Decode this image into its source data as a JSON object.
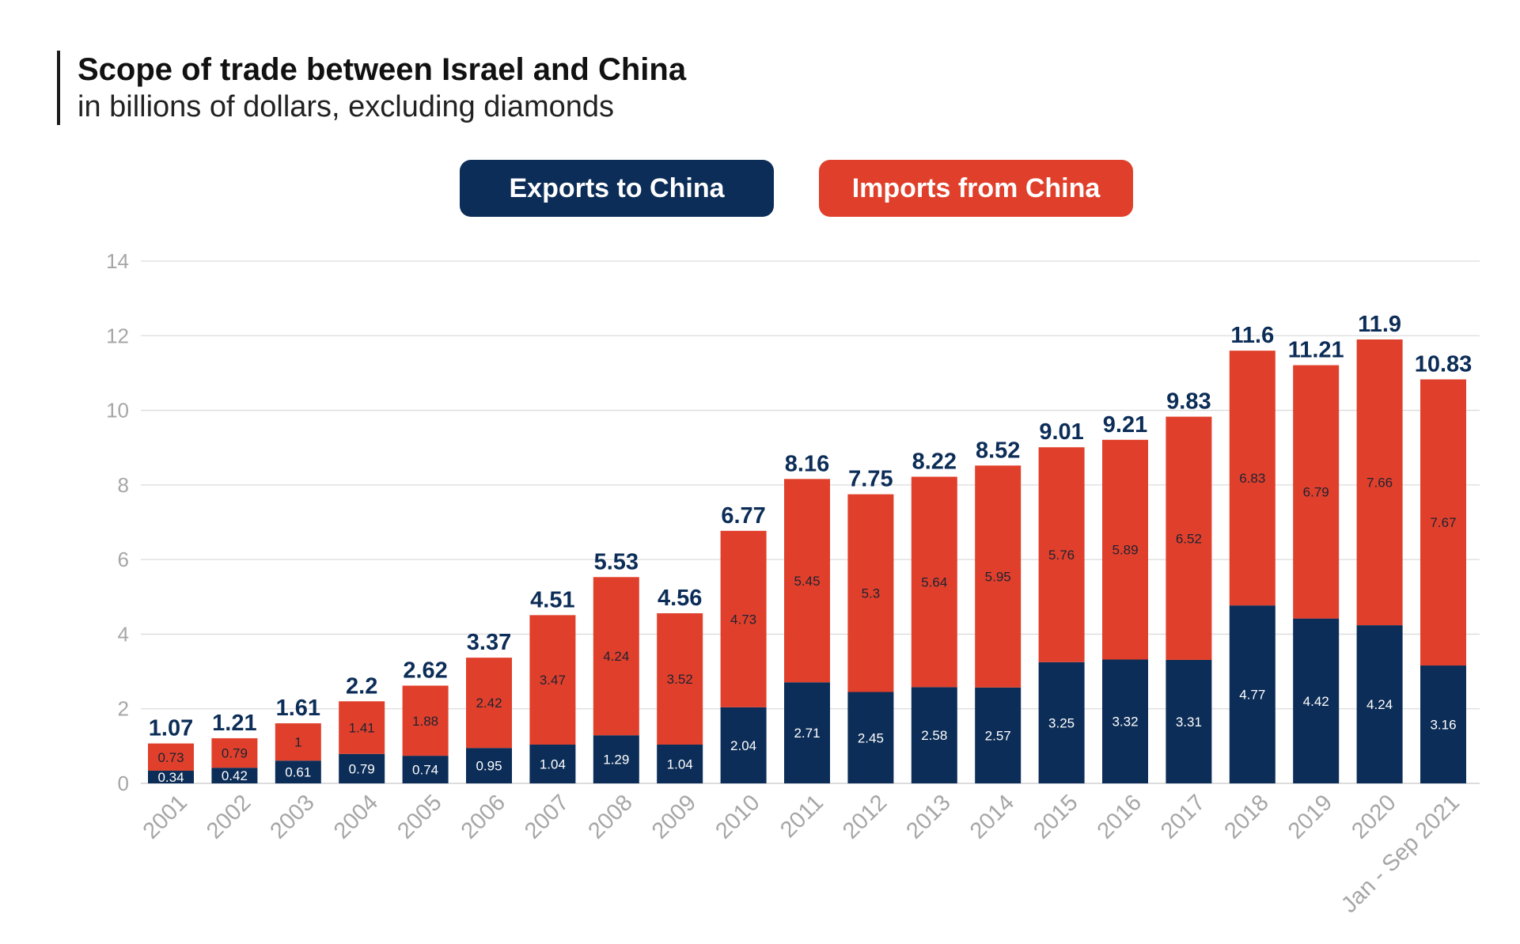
{
  "header": {
    "title": "Scope of trade between Israel and China",
    "subtitle": "in billions of dollars, excluding diamonds"
  },
  "legend": {
    "exports_label": "Exports to China",
    "imports_label": "Imports from China"
  },
  "colors": {
    "exports": "#0c2d57",
    "imports": "#e0402b",
    "grid": "#dcdcdc",
    "axis_text": "#a6a6a6"
  },
  "chart_data": {
    "type": "bar",
    "stacked": true,
    "title": "Scope of trade between Israel and China",
    "subtitle": "in billions of dollars, excluding diamonds",
    "xlabel": "",
    "ylabel": "",
    "ylim": [
      0,
      14
    ],
    "yticks": [
      0,
      2,
      4,
      6,
      8,
      10,
      12,
      14
    ],
    "grid": true,
    "legend_position": "top-center",
    "categories": [
      "2001",
      "2002",
      "2003",
      "2004",
      "2005",
      "2006",
      "2007",
      "2008",
      "2009",
      "2010",
      "2011",
      "2012",
      "2013",
      "2014",
      "2015",
      "2016",
      "2017",
      "2018",
      "2019",
      "2020",
      "Jan - Sep 2021"
    ],
    "series": [
      {
        "name": "Exports to China",
        "color": "#0c2d57",
        "values": [
          0.34,
          0.42,
          0.61,
          0.79,
          0.74,
          0.95,
          1.04,
          1.29,
          1.04,
          2.04,
          2.71,
          2.45,
          2.58,
          2.57,
          3.25,
          3.32,
          3.31,
          4.77,
          4.42,
          4.24,
          3.16
        ]
      },
      {
        "name": "Imports from China",
        "color": "#e0402b",
        "values": [
          0.73,
          0.79,
          1,
          1.41,
          1.88,
          2.42,
          3.47,
          4.24,
          3.52,
          4.73,
          5.45,
          5.3,
          5.64,
          5.95,
          5.76,
          5.89,
          6.52,
          6.83,
          6.79,
          7.66,
          7.67
        ]
      }
    ],
    "totals": [
      1.07,
      1.21,
      1.61,
      2.2,
      2.62,
      3.37,
      4.51,
      5.53,
      4.56,
      6.77,
      8.16,
      7.75,
      8.22,
      8.52,
      9.01,
      9.21,
      9.83,
      11.6,
      11.21,
      11.9,
      10.83
    ]
  }
}
